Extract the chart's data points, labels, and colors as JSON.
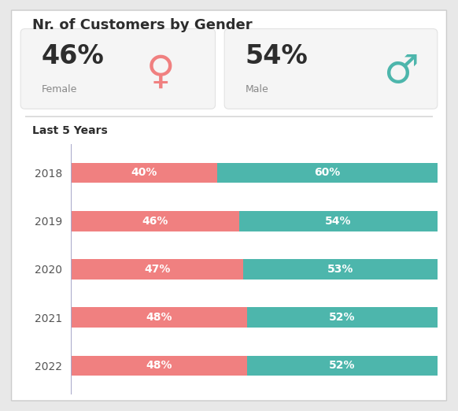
{
  "title": "Nr. of Customers by Gender",
  "kpi_female_pct": "46%",
  "kpi_female_label": "Female",
  "kpi_male_pct": "54%",
  "kpi_male_label": "Male",
  "section_label": "Last 5 Years",
  "years": [
    "2018",
    "2019",
    "2020",
    "2021",
    "2022"
  ],
  "female_vals": [
    40,
    46,
    47,
    48,
    48
  ],
  "male_vals": [
    60,
    54,
    53,
    52,
    52
  ],
  "female_color": "#F08080",
  "male_color": "#4DB6AC",
  "bg_color": "#E8E8E8",
  "card_bg": "#FFFFFF",
  "kpi_card_bg": "#F5F5F5",
  "bar_label_color": "#FFFFFF",
  "title_color": "#2d2d2d",
  "label_color": "#888888",
  "year_color": "#555555",
  "divider_color": "#DDDDDD",
  "vline_color": "#AAAACC"
}
